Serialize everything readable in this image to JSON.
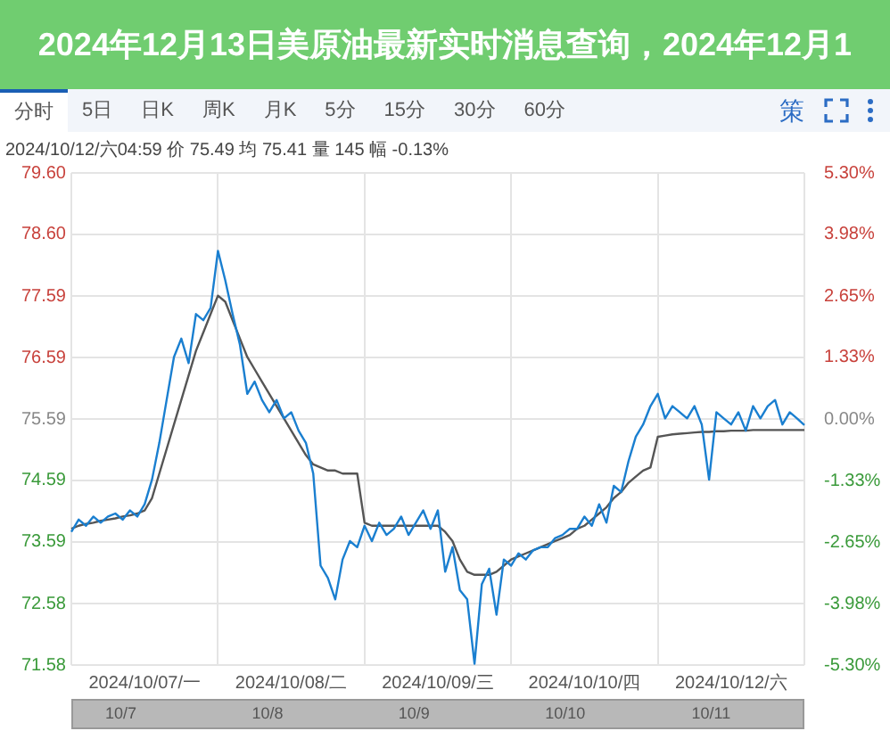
{
  "chart_data": {
    "type": "line",
    "title": "2024年12月13日美原油最新实时消息查询，2024年12月1",
    "categories": [
      null,
      null,
      null,
      null,
      null,
      null,
      null,
      null,
      null,
      null,
      "2024/10/07/一",
      null,
      null,
      null,
      null,
      null,
      null,
      null,
      null,
      null,
      null,
      null,
      null,
      null,
      null,
      null,
      null,
      null,
      null,
      null,
      "2024/10/08/二",
      null,
      null,
      null,
      null,
      null,
      null,
      null,
      null,
      null,
      null,
      null,
      null,
      null,
      null,
      null,
      null,
      null,
      null,
      null,
      "2024/10/09/三",
      null,
      null,
      null,
      null,
      null,
      null,
      null,
      null,
      null,
      null,
      null,
      null,
      null,
      null,
      null,
      null,
      null,
      null,
      null,
      "2024/10/10/四",
      null,
      null,
      null,
      null,
      null,
      null,
      null,
      null,
      null,
      null,
      null,
      null,
      null,
      null,
      null,
      null,
      null,
      null,
      null,
      "2024/10/12/六",
      null,
      null,
      null,
      null,
      null,
      null,
      null,
      null,
      null,
      null
    ],
    "series": [
      {
        "color": "#1a7fd0",
        "values": [
          73.75,
          73.95,
          73.85,
          74.0,
          73.9,
          74.0,
          74.05,
          73.95,
          74.1,
          74.0,
          74.2,
          74.6,
          75.2,
          75.9,
          76.6,
          76.9,
          76.5,
          77.3,
          77.2,
          77.4,
          78.33,
          77.85,
          77.3,
          76.8,
          76.0,
          76.2,
          75.9,
          75.7,
          75.9,
          75.6,
          75.7,
          75.4,
          75.2,
          74.7,
          73.2,
          73.0,
          72.65,
          73.3,
          73.6,
          73.5,
          73.85,
          73.6,
          73.9,
          73.7,
          73.8,
          74.0,
          73.7,
          73.9,
          74.1,
          73.8,
          74.1,
          73.1,
          73.5,
          72.8,
          72.65,
          71.6,
          72.9,
          73.15,
          72.4,
          73.3,
          73.2,
          73.4,
          73.3,
          73.45,
          73.5,
          73.5,
          73.65,
          73.7,
          73.8,
          73.8,
          74.0,
          73.85,
          74.2,
          73.9,
          74.5,
          74.4,
          74.9,
          75.3,
          75.5,
          75.8,
          76.0,
          75.6,
          75.8,
          75.7,
          75.6,
          75.8,
          75.5,
          74.6,
          75.7,
          75.6,
          75.5,
          75.7,
          75.4,
          75.8,
          75.6,
          75.8,
          75.9,
          75.5,
          75.7,
          75.6,
          75.49
        ]
      },
      {
        "color": "#555555",
        "values": [
          73.8,
          73.85,
          73.88,
          73.9,
          73.93,
          73.95,
          73.97,
          74.0,
          74.02,
          74.05,
          74.1,
          74.3,
          74.7,
          75.1,
          75.5,
          75.9,
          76.3,
          76.7,
          77.0,
          77.3,
          77.6,
          77.5,
          77.2,
          76.9,
          76.6,
          76.4,
          76.2,
          76.0,
          75.8,
          75.6,
          75.4,
          75.2,
          75.0,
          74.85,
          74.8,
          74.75,
          74.75,
          74.7,
          74.7,
          74.7,
          73.9,
          73.85,
          73.85,
          73.85,
          73.85,
          73.85,
          73.85,
          73.85,
          73.85,
          73.85,
          73.85,
          73.75,
          73.6,
          73.3,
          73.1,
          73.05,
          73.05,
          73.05,
          73.1,
          73.2,
          73.3,
          73.35,
          73.4,
          73.45,
          73.5,
          73.55,
          73.6,
          73.65,
          73.7,
          73.8,
          73.85,
          73.95,
          74.05,
          74.15,
          74.3,
          74.4,
          74.55,
          74.65,
          74.75,
          74.8,
          75.3,
          75.32,
          75.34,
          75.35,
          75.36,
          75.37,
          75.38,
          75.38,
          75.39,
          75.39,
          75.4,
          75.4,
          75.4,
          75.41,
          75.41,
          75.41,
          75.41,
          75.41,
          75.41,
          75.41,
          75.41
        ]
      }
    ],
    "ylim": [
      71.58,
      79.6
    ],
    "yticks": [
      {
        "value": 79.6,
        "label": "79.60"
      },
      {
        "value": 78.6,
        "label": "78.60"
      },
      77.59,
      76.59,
      75.59,
      74.59,
      73.59,
      72.58,
      71.58
    ],
    "y2lim": [
      -5.3,
      5.3
    ],
    "y2ticks": [
      {
        "value": 5.3,
        "label": "5.30%"
      },
      {
        "value": 3.98,
        "label": "3.98%"
      },
      {
        "value": 2.65,
        "label": "2.65%"
      },
      {
        "value": 1.33,
        "label": "1.33%"
      },
      {
        "value": 0,
        "label": "0.00%"
      },
      {
        "value": -1.33,
        "label": "-1.33%"
      },
      {
        "value": -2.65,
        "label": "-2.65%"
      },
      {
        "value": -3.98,
        "label": "-3.98%"
      },
      {
        "value": -5.3,
        "label": "-5.30%"
      }
    ],
    "annotations": [
      "分时",
      "5日",
      "日K",
      "周K",
      "月K",
      "5分",
      "15分",
      "30分",
      "60分",
      "策",
      "2024/10/12/六04:59 价 75.49 均 75.41 量 145 幅 -0.13%",
      "10/7",
      "10/8",
      "10/9",
      "10/10",
      "10/11"
    ],
    "grid": true,
    "legend": false,
    "marker": "none",
    "line_style": "solid"
  }
}
